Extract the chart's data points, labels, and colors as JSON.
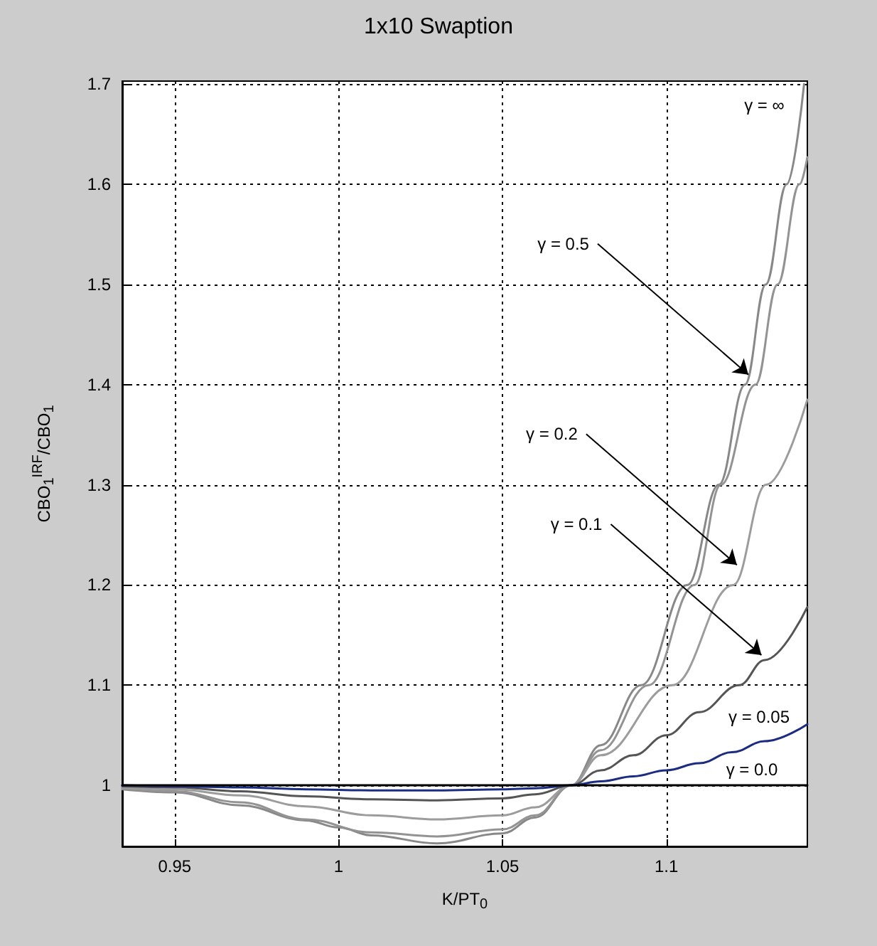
{
  "chart_data": {
    "type": "line",
    "title": "1x10 Swaption",
    "xlabel": "K/PT$_{0}$",
    "ylabel": "CBO$_{1}$$^{IRF}$/CBO$_{1}$",
    "xlim": [
      0.934,
      1.143
    ],
    "ylim": [
      0.939,
      1.703
    ],
    "xticks": [
      0.95,
      1,
      1.05,
      1.1
    ],
    "yticks": [
      1,
      1.1,
      1.2,
      1.3,
      1.4,
      1.5,
      1.6,
      1.7
    ],
    "grid": true,
    "line_style": "solid",
    "marker": "none",
    "series": [
      {
        "color": "#888888",
        "x": [
          0.934,
          0.95,
          0.97,
          0.99,
          1.0,
          1.01,
          1.03,
          1.05,
          1.06,
          1.071,
          1.08,
          1.0923,
          1.1064,
          1.116,
          1.124,
          1.1303,
          1.1367,
          1.142
        ],
        "values": [
          0.996,
          0.993,
          0.98,
          0.965,
          0.958,
          0.95,
          0.942,
          0.952,
          0.968,
          1.0,
          1.04,
          1.1,
          1.2,
          1.3,
          1.4,
          1.5,
          1.6,
          1.7
        ]
      },
      {
        "color": "#939393",
        "x": [
          0.934,
          0.95,
          0.97,
          0.99,
          1.01,
          1.03,
          1.05,
          1.06,
          1.071,
          1.08,
          1.0946,
          1.1086,
          1.1166,
          1.1272,
          1.1339,
          1.1406,
          1.143
        ],
        "values": [
          0.997,
          0.994,
          0.983,
          0.966,
          0.953,
          0.949,
          0.956,
          0.97,
          1.0,
          1.035,
          1.1,
          1.2,
          1.3,
          1.4,
          1.5,
          1.6,
          1.627
        ]
      },
      {
        "color": "#9c9c9c",
        "x": [
          0.934,
          0.95,
          0.97,
          0.99,
          1.01,
          1.03,
          1.05,
          1.06,
          1.071,
          1.08,
          1.1018,
          1.1204,
          1.1304,
          1.143
        ],
        "values": [
          0.998,
          0.996,
          0.99,
          0.979,
          0.97,
          0.966,
          0.97,
          0.978,
          1.0,
          1.03,
          1.1,
          1.2,
          1.3,
          1.385
        ]
      },
      {
        "color": "#555555",
        "x": [
          0.934,
          0.95,
          0.97,
          0.99,
          1.01,
          1.03,
          1.05,
          1.06,
          1.071,
          1.08,
          1.09,
          1.1,
          1.11,
          1.1222,
          1.13,
          1.143
        ],
        "values": [
          0.999,
          0.998,
          0.994,
          0.989,
          0.986,
          0.985,
          0.987,
          0.991,
          1.0,
          1.015,
          1.03,
          1.05,
          1.073,
          1.1,
          1.125,
          1.178
        ]
      },
      {
        "color": "#1c2c80",
        "x": [
          0.934,
          0.95,
          0.97,
          0.99,
          1.01,
          1.03,
          1.05,
          1.06,
          1.071,
          1.08,
          1.09,
          1.1,
          1.11,
          1.12,
          1.13,
          1.143
        ],
        "values": [
          1.0,
          0.999,
          0.998,
          0.996,
          0.995,
          0.995,
          0.996,
          0.997,
          1.0,
          1.004,
          1.009,
          1.015,
          1.022,
          1.033,
          1.044,
          1.061
        ]
      },
      {
        "color": "#000000",
        "x": [
          0.934,
          1.143
        ],
        "values": [
          1.0,
          1.0
        ]
      }
    ],
    "annotations": [
      "γ = ∞",
      {
        "text": "γ = 0.5",
        "x": 1.125,
        "y": 1.41
      },
      {
        "text": "γ = 0.2",
        "x": 1.1215,
        "y": 1.22
      },
      {
        "text": "γ = 0.1",
        "x": 1.129,
        "y": 1.13
      },
      "γ = 0.05",
      "γ = 0.0"
    ]
  }
}
